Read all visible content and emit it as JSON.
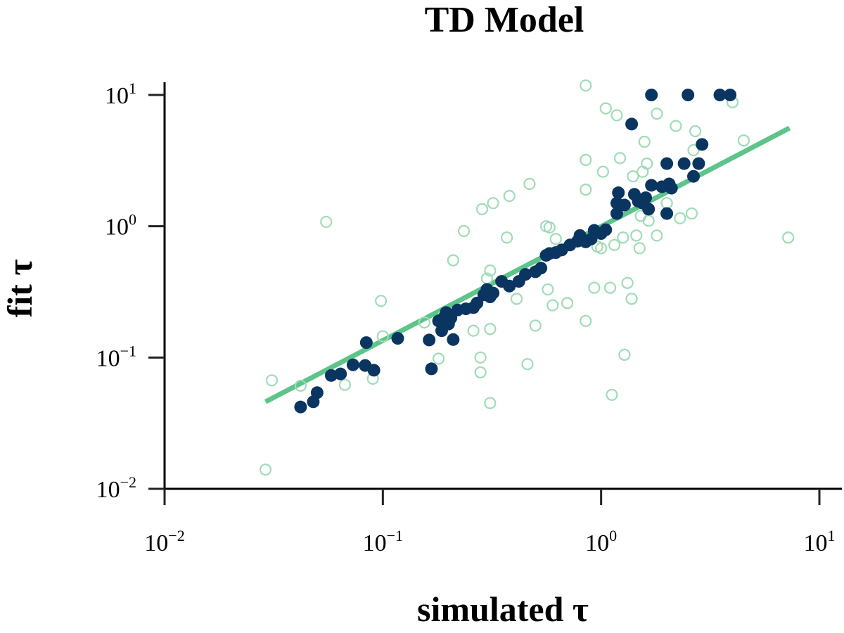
{
  "chart_data": {
    "type": "scatter",
    "title": "TD Model",
    "xlabel": "simulated τ",
    "ylabel": "fit τ",
    "xscale": "log",
    "yscale": "log",
    "xlim": [
      0.01,
      13
    ],
    "ylim": [
      0.01,
      12
    ],
    "x_ticks": [
      {
        "value": 0.01,
        "base": "10",
        "exp": "−2"
      },
      {
        "value": 0.1,
        "base": "10",
        "exp": "−1"
      },
      {
        "value": 1,
        "base": "10",
        "exp": "0"
      },
      {
        "value": 10,
        "base": "10",
        "exp": "1"
      }
    ],
    "y_ticks": [
      {
        "value": 0.01,
        "base": "10",
        "exp": "−2"
      },
      {
        "value": 0.1,
        "base": "10",
        "exp": "−1"
      },
      {
        "value": 1,
        "base": "10",
        "exp": "0"
      },
      {
        "value": 10,
        "base": "10",
        "exp": "1"
      }
    ],
    "colors": {
      "filled": "#0b3561",
      "open": "#9fdcb7",
      "line": "#5dc48a"
    },
    "series": [
      {
        "name": "open",
        "style": "open",
        "points": [
          [
            0.029,
            0.014
          ],
          [
            0.031,
            0.067
          ],
          [
            0.042,
            0.061
          ],
          [
            0.055,
            1.08
          ],
          [
            0.067,
            0.062
          ],
          [
            0.09,
            0.069
          ],
          [
            0.098,
            0.27
          ],
          [
            0.1,
            0.145
          ],
          [
            0.155,
            0.185
          ],
          [
            0.18,
            0.098
          ],
          [
            0.19,
            0.21
          ],
          [
            0.21,
            0.55
          ],
          [
            0.235,
            0.92
          ],
          [
            0.26,
            0.16
          ],
          [
            0.28,
            0.077
          ],
          [
            0.28,
            0.1
          ],
          [
            0.285,
            1.35
          ],
          [
            0.3,
            0.4
          ],
          [
            0.31,
            0.46
          ],
          [
            0.31,
            0.165
          ],
          [
            0.31,
            0.045
          ],
          [
            0.32,
            1.5
          ],
          [
            0.37,
            0.82
          ],
          [
            0.38,
            1.7
          ],
          [
            0.41,
            0.28
          ],
          [
            0.46,
            0.089
          ],
          [
            0.47,
            2.1
          ],
          [
            0.5,
            0.175
          ],
          [
            0.56,
            1.0
          ],
          [
            0.57,
            0.33
          ],
          [
            0.58,
            0.98
          ],
          [
            0.6,
            0.25
          ],
          [
            0.62,
            0.8
          ],
          [
            0.7,
            0.26
          ],
          [
            0.85,
            0.19
          ],
          [
            0.85,
            1.9
          ],
          [
            0.85,
            3.2
          ],
          [
            0.85,
            11.8
          ],
          [
            0.93,
            0.34
          ],
          [
            0.96,
            0.7
          ],
          [
            1.0,
            0.68
          ],
          [
            1.02,
            2.6
          ],
          [
            1.05,
            7.9
          ],
          [
            1.1,
            0.34
          ],
          [
            1.12,
            0.052
          ],
          [
            1.15,
            0.72
          ],
          [
            1.18,
            7.0
          ],
          [
            1.22,
            3.3
          ],
          [
            1.26,
            0.82
          ],
          [
            1.28,
            0.105
          ],
          [
            1.32,
            0.37
          ],
          [
            1.38,
            0.28
          ],
          [
            1.4,
            2.4
          ],
          [
            1.45,
            0.85
          ],
          [
            1.5,
            0.68
          ],
          [
            1.52,
            1.2
          ],
          [
            1.55,
            2.6
          ],
          [
            1.58,
            4.4
          ],
          [
            1.62,
            3.0
          ],
          [
            1.65,
            1.1
          ],
          [
            1.8,
            7.2
          ],
          [
            1.8,
            0.85
          ],
          [
            2.0,
            1.5
          ],
          [
            2.2,
            5.8
          ],
          [
            2.3,
            1.15
          ],
          [
            2.6,
            1.25
          ],
          [
            2.65,
            3.8
          ],
          [
            2.7,
            5.3
          ],
          [
            4.0,
            8.8
          ],
          [
            4.5,
            4.5
          ],
          [
            7.2,
            0.82
          ]
        ]
      },
      {
        "name": "filled",
        "style": "filled",
        "points": [
          [
            0.042,
            0.042
          ],
          [
            0.048,
            0.046
          ],
          [
            0.05,
            0.054
          ],
          [
            0.058,
            0.073
          ],
          [
            0.064,
            0.075
          ],
          [
            0.073,
            0.088
          ],
          [
            0.083,
            0.087
          ],
          [
            0.084,
            0.13
          ],
          [
            0.091,
            0.08
          ],
          [
            0.117,
            0.14
          ],
          [
            0.163,
            0.136
          ],
          [
            0.167,
            0.082
          ],
          [
            0.18,
            0.19
          ],
          [
            0.186,
            0.16
          ],
          [
            0.19,
            0.2
          ],
          [
            0.195,
            0.22
          ],
          [
            0.2,
            0.18
          ],
          [
            0.205,
            0.2
          ],
          [
            0.21,
            0.137
          ],
          [
            0.22,
            0.23
          ],
          [
            0.24,
            0.235
          ],
          [
            0.26,
            0.24
          ],
          [
            0.27,
            0.26
          ],
          [
            0.29,
            0.3
          ],
          [
            0.3,
            0.33
          ],
          [
            0.31,
            0.29
          ],
          [
            0.32,
            0.31
          ],
          [
            0.35,
            0.38
          ],
          [
            0.38,
            0.35
          ],
          [
            0.42,
            0.38
          ],
          [
            0.45,
            0.43
          ],
          [
            0.5,
            0.45
          ],
          [
            0.53,
            0.48
          ],
          [
            0.56,
            0.6
          ],
          [
            0.58,
            0.62
          ],
          [
            0.62,
            0.63
          ],
          [
            0.66,
            0.66
          ],
          [
            0.72,
            0.72
          ],
          [
            0.78,
            0.77
          ],
          [
            0.8,
            0.85
          ],
          [
            0.85,
            0.76
          ],
          [
            0.9,
            0.8
          ],
          [
            0.93,
            0.93
          ],
          [
            1.0,
            0.88
          ],
          [
            1.05,
            0.94
          ],
          [
            1.18,
            1.25
          ],
          [
            1.18,
            1.5
          ],
          [
            1.2,
            1.8
          ],
          [
            1.28,
            1.45
          ],
          [
            1.38,
            6.0
          ],
          [
            1.42,
            1.75
          ],
          [
            1.48,
            1.55
          ],
          [
            1.55,
            1.5
          ],
          [
            1.6,
            1.65
          ],
          [
            1.65,
            1.35
          ],
          [
            1.7,
            2.05
          ],
          [
            1.7,
            10.0
          ],
          [
            1.9,
            2.0
          ],
          [
            2.0,
            1.25
          ],
          [
            2.0,
            3.0
          ],
          [
            2.05,
            2.1
          ],
          [
            2.1,
            1.95
          ],
          [
            2.4,
            3.0
          ],
          [
            2.5,
            10.0
          ],
          [
            2.65,
            2.4
          ],
          [
            2.8,
            3.0
          ],
          [
            2.9,
            4.2
          ],
          [
            3.5,
            10.0
          ],
          [
            3.9,
            10.0
          ]
        ]
      }
    ],
    "fit_line": {
      "x": [
        0.029,
        7.3
      ],
      "y": [
        0.046,
        5.6
      ]
    }
  }
}
